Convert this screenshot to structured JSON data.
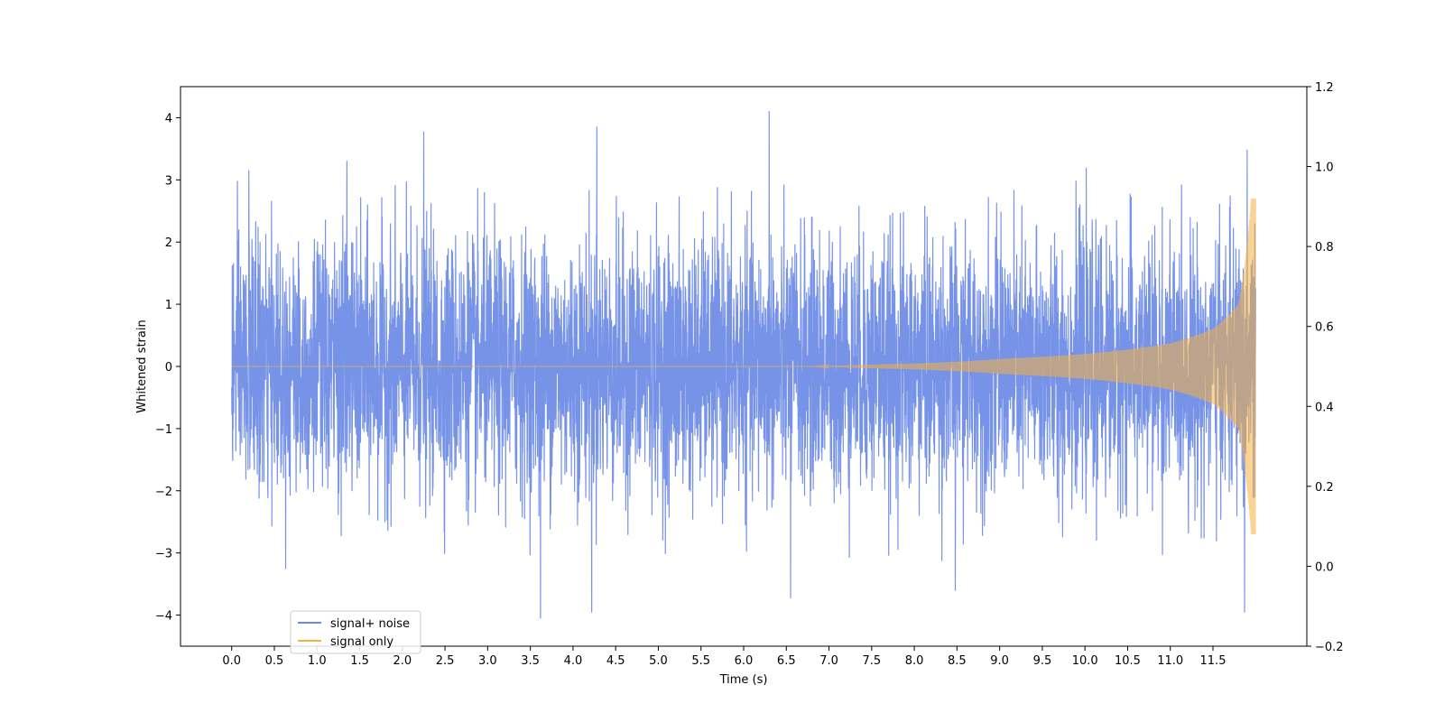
{
  "chart_data": {
    "type": "line",
    "title": "",
    "xlabel": "Time (s)",
    "ylabel": "Whitened strain",
    "ylabel_right": "",
    "xlim": [
      -0.6,
      12.6
    ],
    "ylim": [
      -4.5,
      4.5
    ],
    "ylim_right": [
      -0.2,
      1.2
    ],
    "x_ticks": [
      "0.0",
      "0.5",
      "1.0",
      "1.5",
      "2.0",
      "2.5",
      "3.0",
      "3.5",
      "4.0",
      "4.5",
      "5.0",
      "5.5",
      "6.0",
      "6.5",
      "7.0",
      "7.5",
      "8.0",
      "8.5",
      "9.0",
      "9.5",
      "10.0",
      "10.5",
      "11.0",
      "11.5"
    ],
    "y_ticks": [
      "−4",
      "−3",
      "−2",
      "−1",
      "0",
      "1",
      "2",
      "3",
      "4"
    ],
    "y_ticks_right": [
      "−0.2",
      "0.0",
      "0.2",
      "0.4",
      "0.6",
      "0.8",
      "1.0",
      "1.2"
    ],
    "grid": false,
    "legend_position": "lower-left",
    "series": [
      {
        "name": "signal+ noise",
        "color": "#6b8ae6",
        "description": "Gaussian whitened noise (std ~1) from 0 to 12 s, with spikes up to ~4.1 (near 6.3 s) and down to ~-4.05 (near 3.6 s)",
        "x_range": [
          0.0,
          12.0
        ],
        "peaks": [
          {
            "x": 0.2,
            "y": 3.15
          },
          {
            "x": 1.35,
            "y": 3.3
          },
          {
            "x": 2.25,
            "y": 3.77
          },
          {
            "x": 4.28,
            "y": 3.85
          },
          {
            "x": 6.3,
            "y": 4.1
          },
          {
            "x": 11.9,
            "y": 3.48
          },
          {
            "x": 3.62,
            "y": -4.05
          },
          {
            "x": 4.22,
            "y": -3.95
          },
          {
            "x": 6.55,
            "y": -3.72
          },
          {
            "x": 8.48,
            "y": -3.6
          },
          {
            "x": 11.87,
            "y": -3.95
          }
        ]
      },
      {
        "name": "signal only",
        "color": "#f5b040",
        "description": "Chirp that stays near 0 until ~7.5 s, then its amplitude grows to about ±2.7 just before 12 s",
        "x_range": [
          0.0,
          12.0
        ],
        "envelope": [
          {
            "x": 7.5,
            "amp": 0.03
          },
          {
            "x": 9.0,
            "amp": 0.12
          },
          {
            "x": 10.0,
            "amp": 0.2
          },
          {
            "x": 11.0,
            "amp": 0.37
          },
          {
            "x": 11.5,
            "amp": 0.6
          },
          {
            "x": 11.8,
            "amp": 1.0
          },
          {
            "x": 11.95,
            "amp": 2.7
          }
        ]
      }
    ]
  }
}
